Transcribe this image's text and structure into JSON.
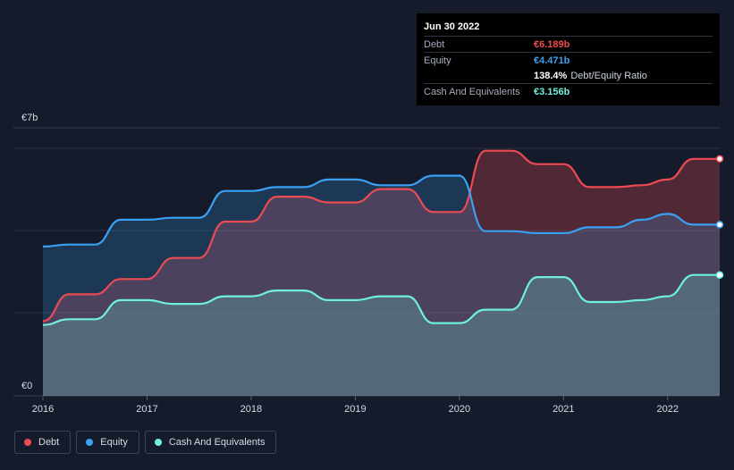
{
  "tooltip": {
    "date": "Jun 30 2022",
    "rows": [
      {
        "label": "Debt",
        "value": "€6.189b"
      },
      {
        "label": "Equity",
        "value": "€4.471b"
      },
      {
        "label": "",
        "value": "138.4%",
        "extra": "Debt/Equity Ratio"
      },
      {
        "label": "Cash And Equivalents",
        "value": "€3.156b"
      }
    ]
  },
  "legend": [
    {
      "label": "Debt",
      "color": "#ec4b53"
    },
    {
      "label": "Equity",
      "color": "#3aa0f2"
    },
    {
      "label": "Cash And Equivalents",
      "color": "#6ff0de"
    }
  ],
  "colors": {
    "debt": "#ec4b53",
    "equity": "#3aa0f2",
    "cash": "#6ff0de",
    "background": "#151b2a"
  },
  "chart_data": {
    "type": "area",
    "currency": "€",
    "y_axis_labels": [
      "€7b",
      "€0"
    ],
    "ylim": [
      0,
      7
    ],
    "xlim": [
      2016,
      2022.5
    ],
    "x_ticks": [
      2016,
      2017,
      2018,
      2019,
      2020,
      2021,
      2022
    ],
    "x_tick_labels": [
      "2016",
      "2017",
      "2018",
      "2019",
      "2020",
      "2021",
      "2022"
    ],
    "series": [
      {
        "name": "Debt",
        "key": "debt",
        "points": [
          [
            2016.0,
            1.95
          ],
          [
            2016.25,
            2.65
          ],
          [
            2016.5,
            2.65
          ],
          [
            2016.75,
            3.05
          ],
          [
            2017.0,
            3.05
          ],
          [
            2017.25,
            3.6
          ],
          [
            2017.5,
            3.6
          ],
          [
            2017.75,
            4.55
          ],
          [
            2018.0,
            4.55
          ],
          [
            2018.25,
            5.2
          ],
          [
            2018.5,
            5.2
          ],
          [
            2018.75,
            5.05
          ],
          [
            2019.0,
            5.05
          ],
          [
            2019.25,
            5.4
          ],
          [
            2019.5,
            5.4
          ],
          [
            2019.75,
            4.8
          ],
          [
            2020.0,
            4.8
          ],
          [
            2020.25,
            6.4
          ],
          [
            2020.5,
            6.4
          ],
          [
            2020.75,
            6.05
          ],
          [
            2021.0,
            6.05
          ],
          [
            2021.25,
            5.45
          ],
          [
            2021.5,
            5.45
          ],
          [
            2021.75,
            5.5
          ],
          [
            2022.0,
            5.65
          ],
          [
            2022.25,
            6.189
          ],
          [
            2022.5,
            6.189
          ]
        ]
      },
      {
        "name": "Equity",
        "key": "equity",
        "points": [
          [
            2016.0,
            3.9
          ],
          [
            2016.25,
            3.95
          ],
          [
            2016.5,
            3.95
          ],
          [
            2016.75,
            4.6
          ],
          [
            2017.0,
            4.6
          ],
          [
            2017.25,
            4.65
          ],
          [
            2017.5,
            4.65
          ],
          [
            2017.75,
            5.35
          ],
          [
            2018.0,
            5.35
          ],
          [
            2018.25,
            5.45
          ],
          [
            2018.5,
            5.45
          ],
          [
            2018.75,
            5.65
          ],
          [
            2019.0,
            5.65
          ],
          [
            2019.25,
            5.5
          ],
          [
            2019.5,
            5.5
          ],
          [
            2019.75,
            5.75
          ],
          [
            2020.0,
            5.75
          ],
          [
            2020.25,
            4.3
          ],
          [
            2020.5,
            4.3
          ],
          [
            2020.75,
            4.25
          ],
          [
            2021.0,
            4.25
          ],
          [
            2021.25,
            4.4
          ],
          [
            2021.5,
            4.4
          ],
          [
            2021.75,
            4.6
          ],
          [
            2022.0,
            4.75
          ],
          [
            2022.25,
            4.471
          ],
          [
            2022.5,
            4.471
          ]
        ]
      },
      {
        "name": "Cash And Equivalents",
        "key": "cash",
        "points": [
          [
            2016.0,
            1.85
          ],
          [
            2016.25,
            2.0
          ],
          [
            2016.5,
            2.0
          ],
          [
            2016.75,
            2.5
          ],
          [
            2017.0,
            2.5
          ],
          [
            2017.25,
            2.4
          ],
          [
            2017.5,
            2.4
          ],
          [
            2017.75,
            2.6
          ],
          [
            2018.0,
            2.6
          ],
          [
            2018.25,
            2.75
          ],
          [
            2018.5,
            2.75
          ],
          [
            2018.75,
            2.5
          ],
          [
            2019.0,
            2.5
          ],
          [
            2019.25,
            2.6
          ],
          [
            2019.5,
            2.6
          ],
          [
            2019.75,
            1.9
          ],
          [
            2020.0,
            1.9
          ],
          [
            2020.25,
            2.25
          ],
          [
            2020.5,
            2.25
          ],
          [
            2020.75,
            3.1
          ],
          [
            2021.0,
            3.1
          ],
          [
            2021.25,
            2.45
          ],
          [
            2021.5,
            2.45
          ],
          [
            2021.75,
            2.5
          ],
          [
            2022.0,
            2.6
          ],
          [
            2022.25,
            3.156
          ],
          [
            2022.5,
            3.156
          ]
        ]
      }
    ]
  }
}
